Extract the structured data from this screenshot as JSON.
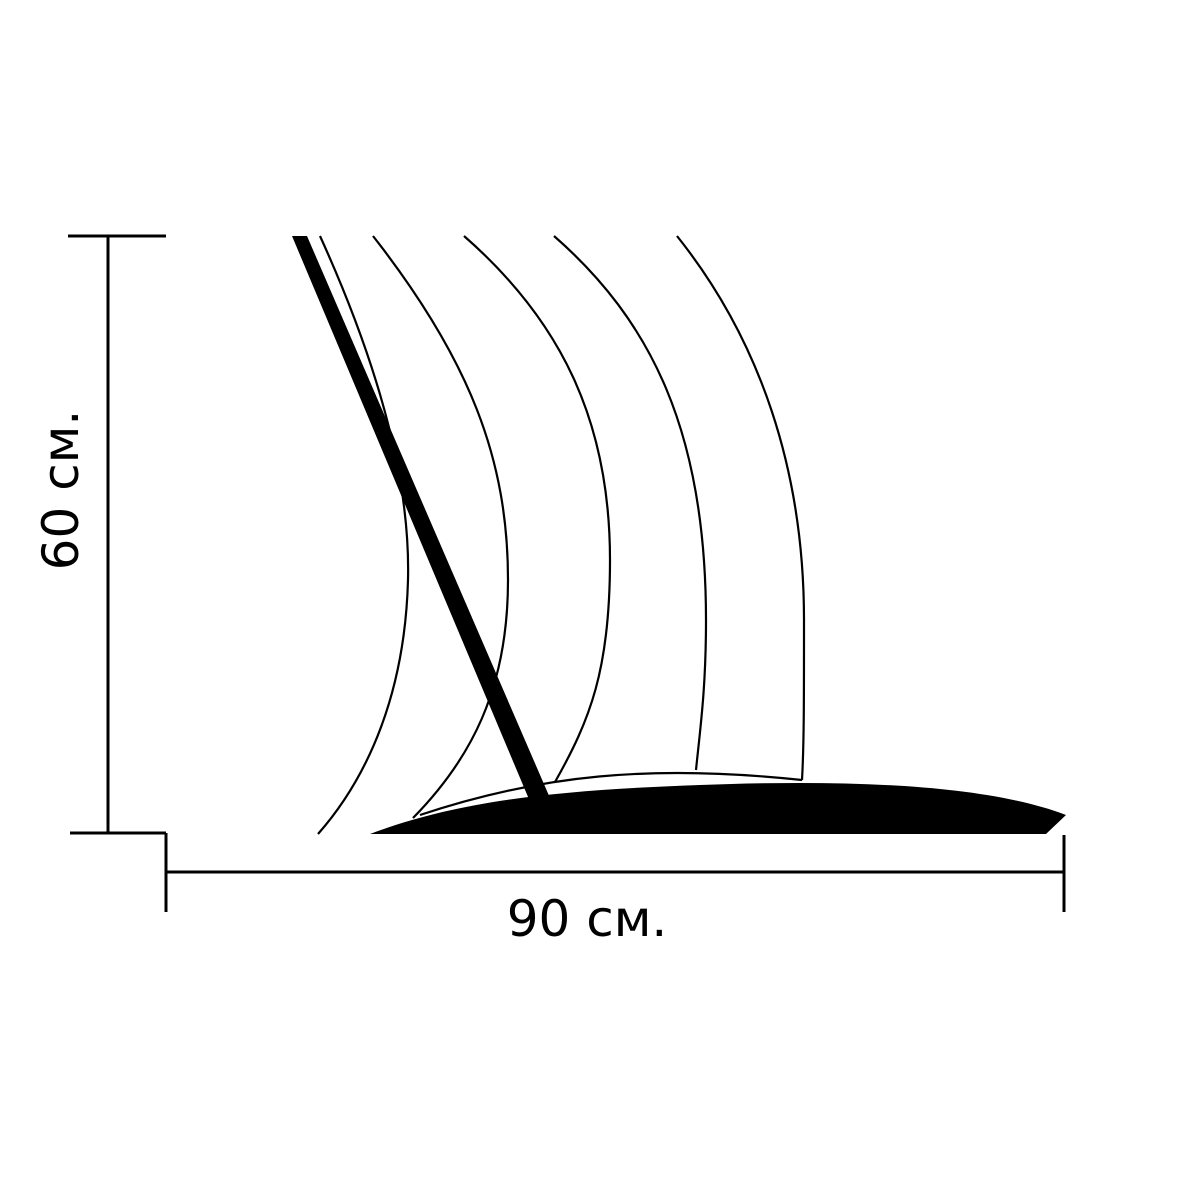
{
  "dimensions": {
    "height_label": "60 см.",
    "width_label": "90 см."
  },
  "colors": {
    "ink": "#000000",
    "background": "#ffffff"
  }
}
